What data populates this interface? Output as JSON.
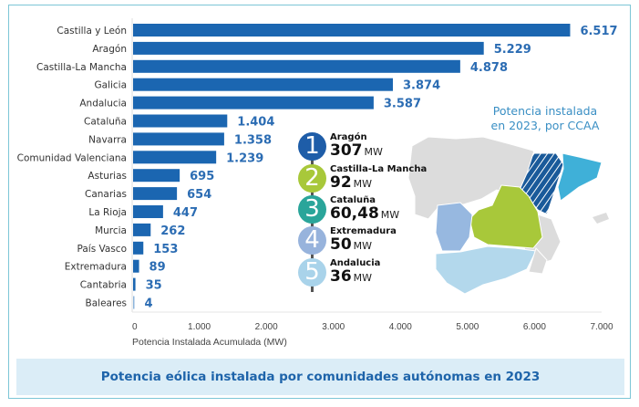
{
  "chart_data": {
    "type": "bar",
    "orientation": "horizontal",
    "title": "Potencia eólica instalada por comunidades autónomas en 2023",
    "xlabel": "Potencia Instalada Acumulada (MW)",
    "ylabel": "",
    "xlim": [
      0,
      7000
    ],
    "xticks": [
      0,
      1000,
      2000,
      3000,
      4000,
      5000,
      6000,
      7000
    ],
    "xtick_labels": [
      "0",
      "1.000",
      "2.000",
      "3.000",
      "4.000",
      "5.000",
      "6.000",
      "7.000"
    ],
    "grid": false,
    "bar_color": "#1b66b1",
    "value_label_color": "#2b6cb3",
    "categories": [
      "Castilla y León",
      "Aragón",
      "Castilla-La Mancha",
      "Galicia",
      "Andalucia",
      "Cataluña",
      "Navarra",
      "Comunidad Valenciana",
      "Asturias",
      "Canarias",
      "La Rioja",
      "Murcia",
      "País Vasco",
      "Extremadura",
      "Cantabria",
      "Baleares"
    ],
    "values": [
      6517,
      5229,
      4878,
      3874,
      3587,
      1404,
      1358,
      1239,
      695,
      654,
      447,
      262,
      153,
      89,
      35,
      4
    ],
    "value_labels": [
      "6.517",
      "5.229",
      "4.878",
      "3.874",
      "3.587",
      "1.404",
      "1.358",
      "1.239",
      "695",
      "654",
      "447",
      "262",
      "153",
      "89",
      "35",
      "4"
    ]
  },
  "footer_title": "Potencia eólica instalada por comunidades autónomas en 2023",
  "map": {
    "title_line1": "Potencia instalada",
    "title_line2": "en 2023, por CCAA",
    "colors": {
      "aragon": "#1a5a9a",
      "castilla_la_mancha": "#a8c83a",
      "cataluna": "#3fb0d8",
      "extremadura": "#97b8e0",
      "andalucia": "#b3d8ec",
      "other": "#dcdcdc"
    }
  },
  "ranking": [
    {
      "rank": "1",
      "name": "Aragón",
      "value": "307",
      "unit": "MW",
      "color": "#1e5da8"
    },
    {
      "rank": "2",
      "name": "Castilla-La Mancha",
      "value": "92",
      "unit": "MW",
      "color": "#a8c83a"
    },
    {
      "rank": "3",
      "name": "Cataluña",
      "value": "60,48",
      "unit": "MW",
      "color": "#2aa59a"
    },
    {
      "rank": "4",
      "name": "Extremadura",
      "value": "50",
      "unit": "MW",
      "color": "#97b3dc"
    },
    {
      "rank": "5",
      "name": "Andalucia",
      "value": "36",
      "unit": "MW",
      "color": "#a9d3ea"
    }
  ]
}
